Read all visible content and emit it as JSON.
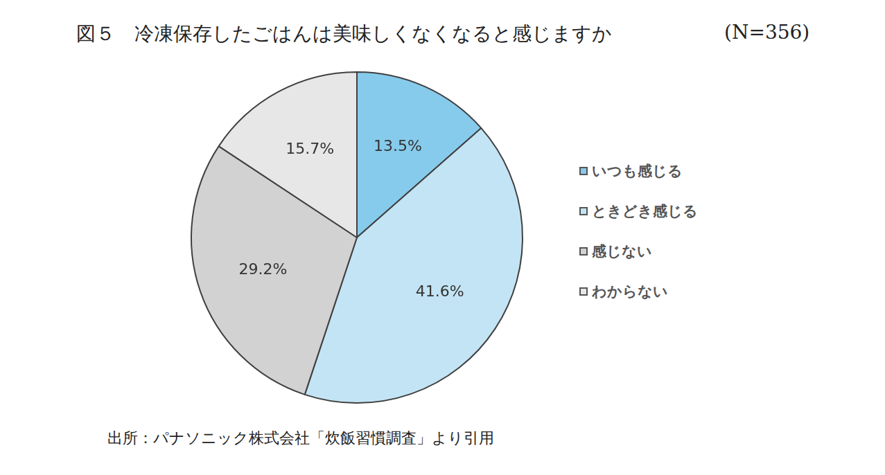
{
  "chart_data": {
    "type": "pie",
    "title": "図５　冷凍保存したごはんは美味しくなくなると感じますか",
    "subtitle": "(N=356)",
    "source": "出所：パナソニック株式会社「炊飯習慣調査」より引用",
    "categories": [
      "いつも感じる",
      "ときどき感じる",
      "感じない",
      "わからない"
    ],
    "values": [
      13.5,
      41.6,
      29.2,
      15.7
    ],
    "value_labels": [
      "13.5%",
      "41.6%",
      "29.2%",
      "15.7%"
    ],
    "colors": [
      "#87cbec",
      "#c3e4f4",
      "#d2d2d2",
      "#e7e7e7"
    ],
    "data_labels": true,
    "legend": "right"
  }
}
